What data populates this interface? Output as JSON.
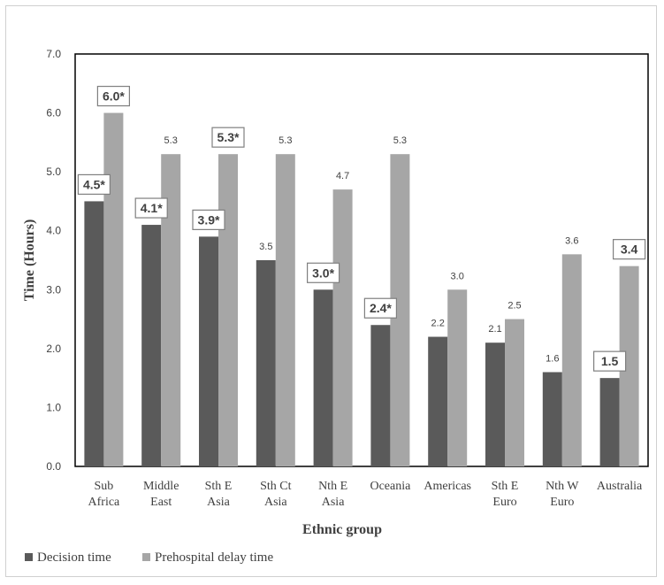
{
  "chart_data": {
    "type": "bar",
    "title": "",
    "xlabel": "Ethnic group",
    "ylabel": "Time (Hours)",
    "ylim": [
      0,
      7
    ],
    "yticks": [
      "0.0",
      "1.0",
      "2.0",
      "3.0",
      "4.0",
      "5.0",
      "6.0",
      "7.0"
    ],
    "grid": false,
    "legend_position": "bottom-left",
    "categories": [
      [
        "Sub",
        "Africa"
      ],
      [
        "Middle",
        "East"
      ],
      [
        "Sth E",
        "Asia"
      ],
      [
        "Sth Ct",
        "Asia"
      ],
      [
        "Nth E",
        "Asia"
      ],
      [
        "Oceania"
      ],
      [
        "Americas"
      ],
      [
        "Sth E",
        "Euro"
      ],
      [
        "Nth W",
        "Euro"
      ],
      [
        "Australia"
      ]
    ],
    "series": [
      {
        "name": "Decision time",
        "color": "#5a5a5a",
        "values": [
          4.5,
          4.1,
          3.9,
          3.5,
          3.0,
          2.4,
          2.2,
          2.1,
          1.6,
          1.5
        ],
        "labels": [
          "4.5*",
          "4.1*",
          "3.9*",
          "3.5",
          "3.0*",
          "2.4*",
          "2.2",
          "2.1",
          "1.6",
          "1.5"
        ],
        "boxed": [
          true,
          true,
          true,
          false,
          true,
          true,
          false,
          false,
          false,
          true
        ]
      },
      {
        "name": "Prehospital delay time",
        "color": "#a6a6a6",
        "values": [
          6.0,
          5.3,
          5.3,
          5.3,
          4.7,
          5.3,
          3.0,
          2.5,
          3.6,
          3.4
        ],
        "labels": [
          "6.0*",
          "5.3",
          "5.3*",
          "5.3",
          "4.7",
          "5.3",
          "3.0",
          "2.5",
          "3.6",
          "3.4"
        ],
        "boxed": [
          true,
          false,
          true,
          false,
          false,
          false,
          false,
          false,
          false,
          true
        ]
      }
    ]
  }
}
